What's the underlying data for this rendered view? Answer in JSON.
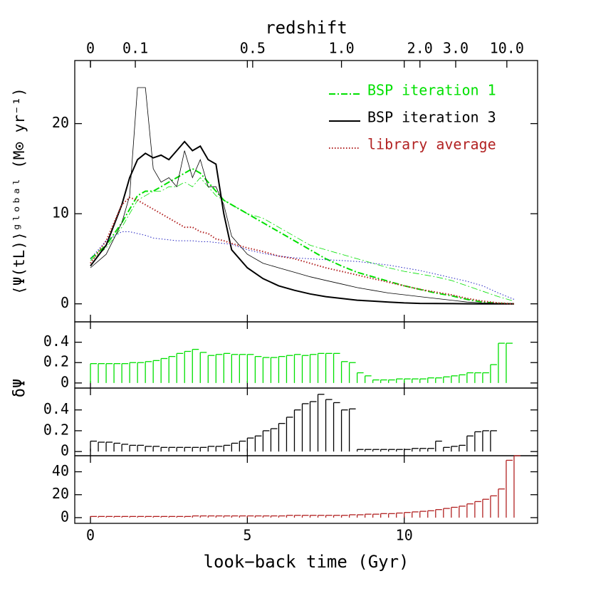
{
  "chart_data": [
    {
      "type": "line",
      "x2label": "redshift",
      "ylabel": "⟨Ψ(tL)⟩ᵍˡᵒᵇᵃˡ  (M⊙ yr⁻¹)",
      "xlim": [
        -0.5,
        14.25
      ],
      "ylim": [
        -2,
        27
      ],
      "yticks": [
        0,
        10,
        20
      ],
      "x2ticks": [
        {
          "value": 0,
          "label": "0"
        },
        {
          "value": 1.43,
          "label": "0.1"
        },
        {
          "value": 5.17,
          "label": "0.5"
        },
        {
          "value": 8.0,
          "label": "1.0"
        },
        {
          "value": 10.5,
          "label": "2.0"
        },
        {
          "value": 11.64,
          "label": "3.0"
        },
        {
          "value": 13.27,
          "label": "10.0"
        }
      ],
      "legend": "upper right",
      "x": [
        0,
        0.5,
        1,
        1.25,
        1.5,
        1.75,
        2,
        2.25,
        2.5,
        2.75,
        3,
        3.25,
        3.5,
        3.75,
        4,
        4.25,
        4.5,
        5,
        5.5,
        6,
        6.5,
        7,
        7.5,
        8,
        8.5,
        9,
        9.5,
        10,
        10.5,
        11,
        11.5,
        12,
        12.5,
        13,
        13.5
      ],
      "series": [
        {
          "name": "BSP iteration 1",
          "color": "#00e000",
          "linestyle": "dashdot",
          "linewidth": 2,
          "values": [
            5,
            6.5,
            9,
            10.5,
            12,
            12.5,
            12.5,
            13,
            13.5,
            14,
            14.5,
            15,
            14.5,
            13.5,
            12.5,
            11.5,
            11,
            10,
            9,
            8,
            7,
            6,
            5,
            4.2,
            3.5,
            3,
            2.5,
            2,
            1.6,
            1.2,
            0.9,
            0.5,
            0.2,
            0.05,
            0
          ]
        },
        {
          "color": "#00e000",
          "linestyle": "dashdot",
          "linewidth": 0.8,
          "values": [
            4.8,
            6.2,
            8.5,
            10,
            11.5,
            12,
            12.5,
            12.5,
            13,
            13,
            13.5,
            13,
            14,
            13,
            12,
            11.5,
            11,
            10,
            9.5,
            8.5,
            7.5,
            6.5,
            6,
            5.5,
            5,
            4.5,
            4,
            3.6,
            3.3,
            3,
            2.6,
            2,
            1.4,
            0.8,
            0.3
          ]
        },
        {
          "name": "BSP iteration 3",
          "color": "#000000",
          "linestyle": "solid",
          "linewidth": 2,
          "values": [
            4.2,
            6.5,
            11,
            14,
            16,
            16.7,
            16.2,
            16.5,
            16,
            17,
            18,
            17,
            17.5,
            16,
            15.5,
            10,
            6,
            4,
            2.8,
            2,
            1.5,
            1.1,
            0.8,
            0.6,
            0.4,
            0.3,
            0.2,
            0.1,
            0.05,
            0.03,
            0.02,
            0.01,
            0,
            0,
            0
          ]
        },
        {
          "color": "#000000",
          "linestyle": "solid",
          "linewidth": 0.8,
          "values": [
            4,
            5.5,
            9,
            12,
            24,
            24,
            15,
            13.5,
            14,
            13,
            17,
            14,
            16,
            13,
            13,
            11,
            7.5,
            5.5,
            4.5,
            4,
            3.5,
            3,
            2.6,
            2.2,
            1.8,
            1.5,
            1.2,
            1,
            0.8,
            0.6,
            0.4,
            0.2,
            0.1,
            0.05,
            0
          ]
        },
        {
          "name": "library average",
          "color": "#b22222",
          "linestyle": "dotted",
          "linewidth": 2,
          "values": [
            4.5,
            7,
            11,
            11.8,
            11.5,
            11,
            10.5,
            10,
            9.5,
            9,
            8.5,
            8.5,
            8,
            7.8,
            7.2,
            7,
            6.7,
            6.2,
            5.8,
            5.3,
            5,
            4.5,
            4,
            3.6,
            3.2,
            2.8,
            2.4,
            2,
            1.6,
            1.3,
            1,
            0.6,
            0.3,
            0.1,
            0
          ]
        },
        {
          "color": "#2020c0",
          "linestyle": "dotted",
          "linewidth": 1,
          "values": [
            5,
            7,
            8,
            8,
            7.8,
            7.6,
            7.3,
            7.2,
            7.1,
            7,
            7,
            7,
            6.9,
            6.9,
            6.8,
            6.7,
            6.6,
            6,
            5.6,
            5.3,
            5.1,
            5,
            4.9,
            4.8,
            4.7,
            4.5,
            4.3,
            4,
            3.7,
            3.3,
            2.9,
            2.5,
            2,
            1.2,
            0.5
          ]
        }
      ]
    },
    {
      "type": "bar",
      "color": "#00e000",
      "xlim": [
        -0.5,
        14.25
      ],
      "ylim": [
        -0.05,
        0.6
      ],
      "yticks": [
        0,
        0.2,
        0.4
      ],
      "x": [
        0,
        0.25,
        0.5,
        0.75,
        1,
        1.25,
        1.5,
        1.75,
        2,
        2.25,
        2.5,
        2.75,
        3,
        3.25,
        3.5,
        3.75,
        4,
        4.25,
        4.5,
        4.75,
        5,
        5.25,
        5.5,
        5.75,
        6,
        6.25,
        6.5,
        6.75,
        7,
        7.25,
        7.5,
        7.75,
        8,
        8.25,
        8.5,
        8.75,
        9,
        9.25,
        9.5,
        9.75,
        10,
        10.25,
        10.5,
        10.75,
        11,
        11.25,
        11.5,
        11.75,
        12,
        12.25,
        12.5,
        12.75,
        13,
        13.25
      ],
      "values": [
        0.19,
        0.19,
        0.19,
        0.19,
        0.19,
        0.2,
        0.2,
        0.21,
        0.22,
        0.24,
        0.26,
        0.29,
        0.31,
        0.33,
        0.3,
        0.27,
        0.28,
        0.29,
        0.28,
        0.28,
        0.28,
        0.26,
        0.25,
        0.25,
        0.26,
        0.27,
        0.28,
        0.27,
        0.28,
        0.29,
        0.29,
        0.29,
        0.21,
        0.2,
        0.1,
        0.07,
        0.03,
        0.03,
        0.03,
        0.04,
        0.04,
        0.04,
        0.04,
        0.05,
        0.05,
        0.06,
        0.07,
        0.08,
        0.1,
        0.1,
        0.1,
        0.18,
        0.39,
        0.39
      ]
    },
    {
      "type": "bar",
      "color": "#000000",
      "ylabel": "δΨ",
      "xlim": [
        -0.5,
        14.25
      ],
      "ylim": [
        -0.04,
        0.61
      ],
      "yticks": [
        0,
        0.2,
        0.4
      ],
      "x": [
        0,
        0.25,
        0.5,
        0.75,
        1,
        1.25,
        1.5,
        1.75,
        2,
        2.25,
        2.5,
        2.75,
        3,
        3.25,
        3.5,
        3.75,
        4,
        4.25,
        4.5,
        4.75,
        5,
        5.25,
        5.5,
        5.75,
        6,
        6.25,
        6.5,
        6.75,
        7,
        7.25,
        7.5,
        7.75,
        8,
        8.25,
        8.5,
        8.75,
        9,
        9.25,
        9.5,
        9.75,
        10,
        10.25,
        10.5,
        10.75,
        11,
        11.25,
        11.5,
        11.75,
        12,
        12.25,
        12.5,
        12.75
      ],
      "values": [
        0.1,
        0.09,
        0.09,
        0.08,
        0.07,
        0.06,
        0.06,
        0.05,
        0.05,
        0.04,
        0.04,
        0.04,
        0.04,
        0.04,
        0.04,
        0.05,
        0.05,
        0.06,
        0.08,
        0.1,
        0.13,
        0.15,
        0.2,
        0.22,
        0.27,
        0.33,
        0.4,
        0.46,
        0.48,
        0.55,
        0.5,
        0.47,
        0.4,
        0.41,
        0.02,
        0.02,
        0.02,
        0.02,
        0.02,
        0.02,
        0.02,
        0.03,
        0.03,
        0.03,
        0.1,
        0.04,
        0.05,
        0.06,
        0.15,
        0.19,
        0.2,
        0.2
      ]
    },
    {
      "type": "bar",
      "color": "#b22222",
      "xlabel": "look−back time (Gyr)",
      "xlim": [
        -0.5,
        14.25
      ],
      "ylim": [
        -5,
        54
      ],
      "yticks": [
        0,
        20,
        40
      ],
      "xticks": [
        0,
        5,
        10
      ],
      "x": [
        0,
        0.25,
        0.5,
        0.75,
        1,
        1.25,
        1.5,
        1.75,
        2,
        2.25,
        2.5,
        2.75,
        3,
        3.25,
        3.5,
        3.75,
        4,
        4.25,
        4.5,
        4.75,
        5,
        5.25,
        5.5,
        5.75,
        6,
        6.25,
        6.5,
        6.75,
        7,
        7.25,
        7.5,
        7.75,
        8,
        8.25,
        8.5,
        8.75,
        9,
        9.25,
        9.5,
        9.75,
        10,
        10.25,
        10.5,
        10.75,
        11,
        11.25,
        11.5,
        11.75,
        12,
        12.25,
        12.5,
        12.75,
        13,
        13.25,
        13.5
      ],
      "values": [
        1,
        1,
        1,
        1,
        1,
        1,
        1,
        1,
        1,
        1,
        1,
        1,
        1,
        1.5,
        1.5,
        1.5,
        1.5,
        1.5,
        1.5,
        1.5,
        1.5,
        1.5,
        1.5,
        1.5,
        1.5,
        2,
        2,
        2,
        2,
        2,
        2,
        2,
        2,
        2.5,
        2.5,
        3,
        3,
        3.5,
        3.5,
        4,
        4.5,
        5,
        5.5,
        6,
        7,
        8,
        9,
        10,
        12,
        14,
        16,
        19,
        25,
        50,
        54
      ]
    }
  ]
}
